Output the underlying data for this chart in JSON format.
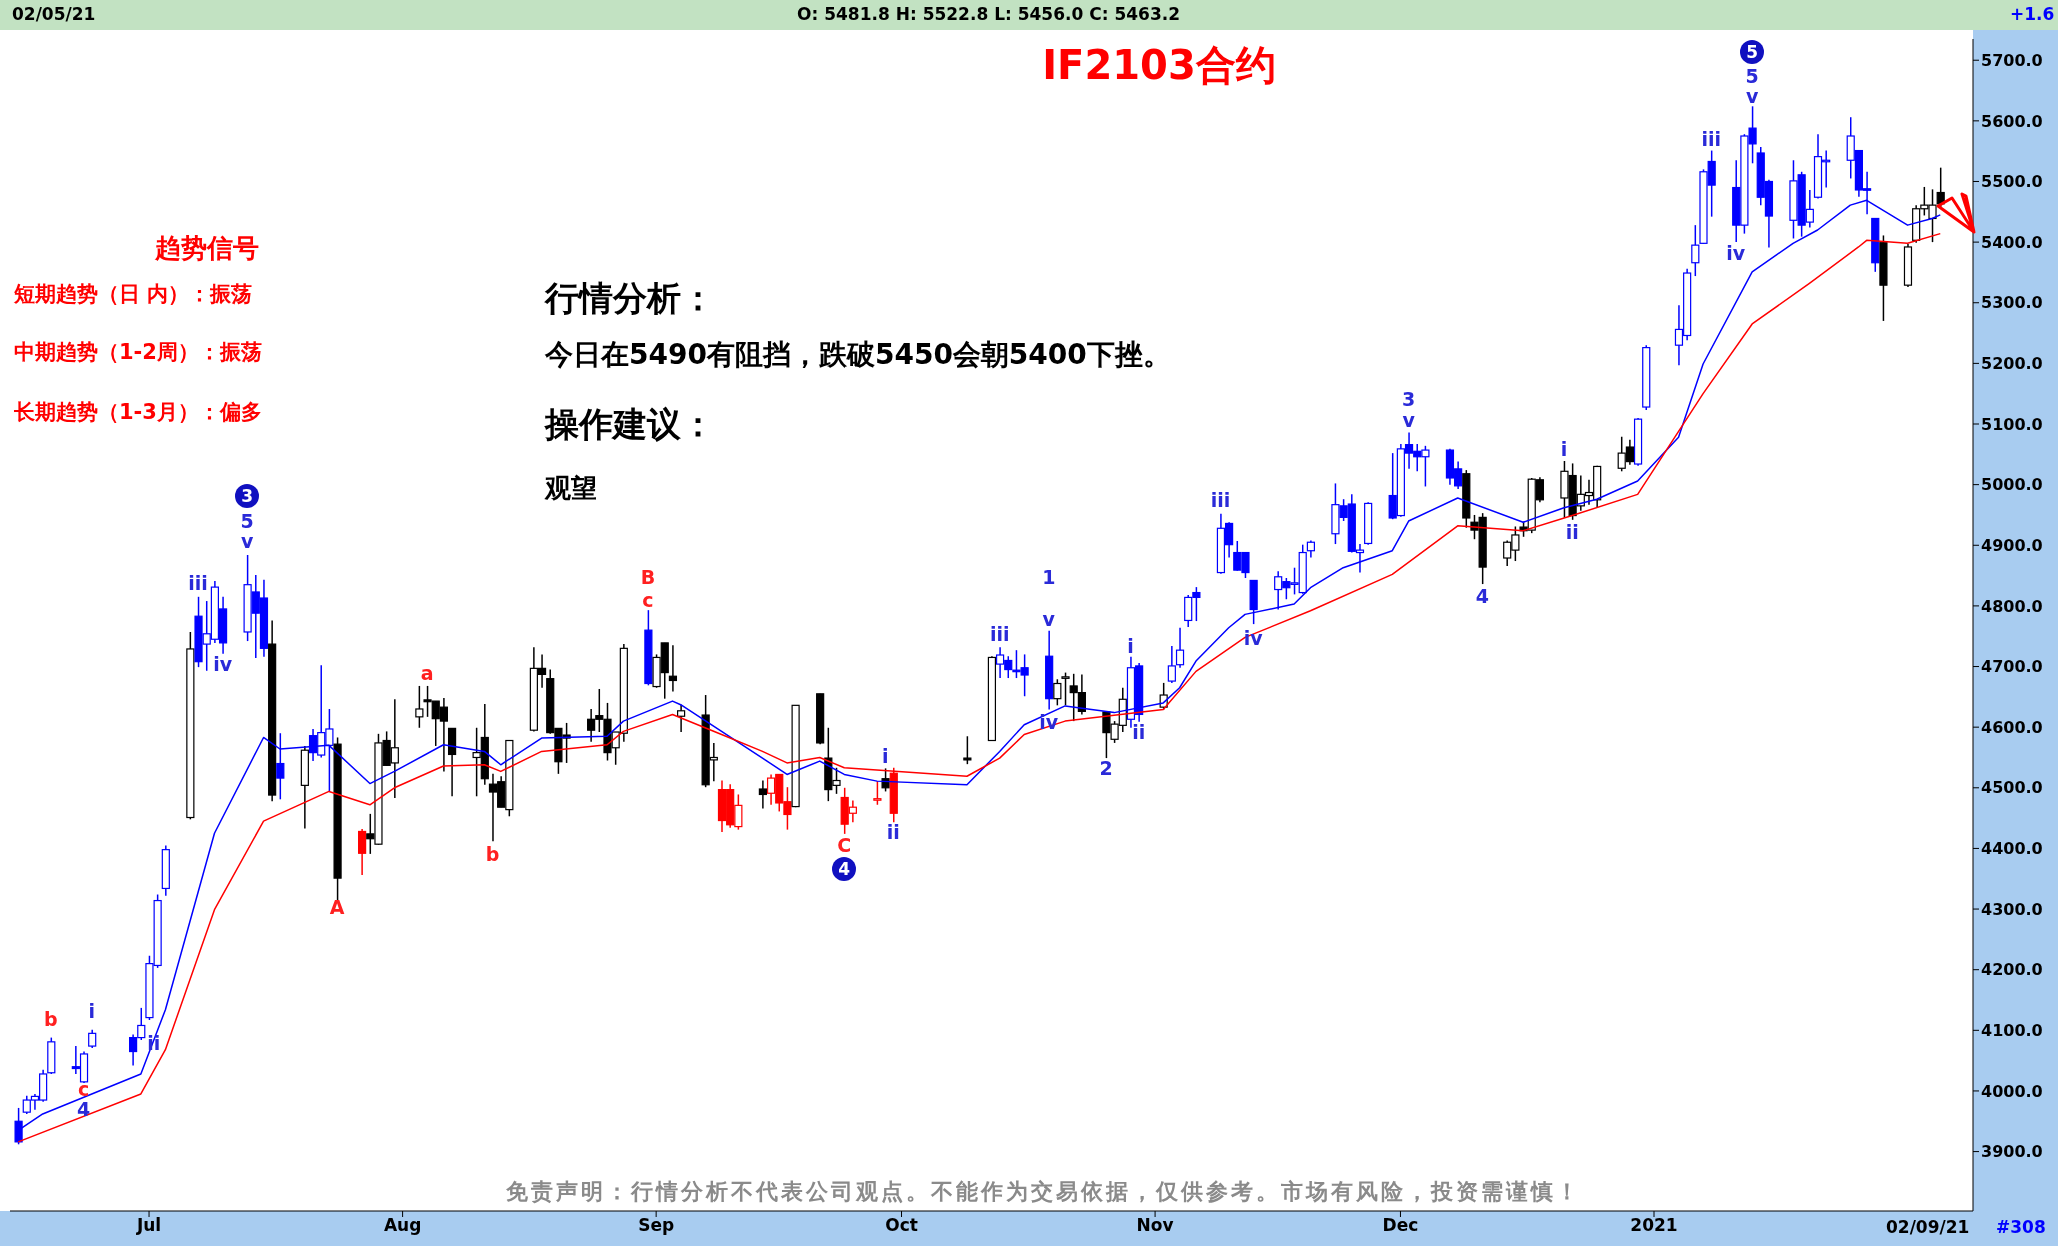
{
  "chart_data": {
    "type": "candlestick",
    "title": "IF2103合约",
    "x": [
      "2020-06-15",
      "2020-06-16",
      "2020-06-17",
      "2020-06-18",
      "2020-06-19",
      "2020-06-22",
      "2020-06-23",
      "2020-06-24",
      "2020-06-29",
      "2020-06-30",
      "2020-07-01",
      "2020-07-02",
      "2020-07-03",
      "2020-07-06",
      "2020-07-07",
      "2020-07-08",
      "2020-07-09",
      "2020-07-10",
      "2020-07-13",
      "2020-07-14",
      "2020-07-15",
      "2020-07-16",
      "2020-07-17",
      "2020-07-20",
      "2020-07-21",
      "2020-07-22",
      "2020-07-23",
      "2020-07-24",
      "2020-07-27",
      "2020-07-28",
      "2020-07-29",
      "2020-07-30",
      "2020-07-31",
      "2020-08-03",
      "2020-08-04",
      "2020-08-05",
      "2020-08-06",
      "2020-08-07",
      "2020-08-10",
      "2020-08-11",
      "2020-08-12",
      "2020-08-13",
      "2020-08-14",
      "2020-08-17",
      "2020-08-18",
      "2020-08-19",
      "2020-08-20",
      "2020-08-21",
      "2020-08-24",
      "2020-08-25",
      "2020-08-26",
      "2020-08-27",
      "2020-08-28",
      "2020-08-31",
      "2020-09-01",
      "2020-09-02",
      "2020-09-03",
      "2020-09-04",
      "2020-09-07",
      "2020-09-08",
      "2020-09-09",
      "2020-09-10",
      "2020-09-11",
      "2020-09-14",
      "2020-09-15",
      "2020-09-16",
      "2020-09-17",
      "2020-09-18",
      "2020-09-21",
      "2020-09-22",
      "2020-09-23",
      "2020-09-24",
      "2020-09-25",
      "2020-09-28",
      "2020-09-29",
      "2020-09-30",
      "2020-10-09",
      "2020-10-12",
      "2020-10-13",
      "2020-10-14",
      "2020-10-15",
      "2020-10-16",
      "2020-10-19",
      "2020-10-20",
      "2020-10-21",
      "2020-10-22",
      "2020-10-23",
      "2020-10-26",
      "2020-10-27",
      "2020-10-28",
      "2020-10-29",
      "2020-10-30",
      "2020-11-02",
      "2020-11-03",
      "2020-11-04",
      "2020-11-05",
      "2020-11-06",
      "2020-11-09",
      "2020-11-10",
      "2020-11-11",
      "2020-11-12",
      "2020-11-13",
      "2020-11-16",
      "2020-11-17",
      "2020-11-18",
      "2020-11-19",
      "2020-11-20",
      "2020-11-23",
      "2020-11-24",
      "2020-11-25",
      "2020-11-26",
      "2020-11-27",
      "2020-11-30",
      "2020-12-01",
      "2020-12-02",
      "2020-12-03",
      "2020-12-04",
      "2020-12-07",
      "2020-12-08",
      "2020-12-09",
      "2020-12-10",
      "2020-12-11",
      "2020-12-14",
      "2020-12-15",
      "2020-12-16",
      "2020-12-17",
      "2020-12-18",
      "2020-12-21",
      "2020-12-22",
      "2020-12-23",
      "2020-12-24",
      "2020-12-25",
      "2020-12-28",
      "2020-12-29",
      "2020-12-30",
      "2020-12-31",
      "2021-01-04",
      "2021-01-05",
      "2021-01-06",
      "2021-01-07",
      "2021-01-08",
      "2021-01-11",
      "2021-01-12",
      "2021-01-13",
      "2021-01-14",
      "2021-01-15",
      "2021-01-18",
      "2021-01-19",
      "2021-01-20",
      "2021-01-21",
      "2021-01-22",
      "2021-01-25",
      "2021-01-26",
      "2021-01-27",
      "2021-01-28",
      "2021-01-29",
      "2021-02-01",
      "2021-02-02",
      "2021-02-03",
      "2021-02-04",
      "2021-02-05"
    ],
    "ohlc": [
      [
        3950,
        3972,
        3912,
        3916
      ],
      [
        3965,
        3992,
        3962,
        3985
      ],
      [
        3985,
        3995,
        3969,
        3991
      ],
      [
        3985,
        4035,
        3982,
        4028
      ],
      [
        4030,
        4088,
        4028,
        4081
      ],
      [
        4040,
        4074,
        4028,
        4037
      ],
      [
        4015,
        4065,
        4013,
        4061
      ],
      [
        4074,
        4101,
        4071,
        4095
      ],
      [
        4088,
        4093,
        4042,
        4065
      ],
      [
        4088,
        4137,
        4084,
        4108
      ],
      [
        4121,
        4223,
        4117,
        4210
      ],
      [
        4207,
        4324,
        4203,
        4314
      ],
      [
        4334,
        4405,
        4322,
        4398
      ],
      [
        4451,
        4757,
        4448,
        4729
      ],
      [
        4783,
        4815,
        4699,
        4708
      ],
      [
        4737,
        4808,
        4693,
        4754
      ],
      [
        4745,
        4841,
        4739,
        4831
      ],
      [
        4795,
        4815,
        4721,
        4739
      ],
      [
        4757,
        4884,
        4742,
        4835
      ],
      [
        4823,
        4851,
        4714,
        4788
      ],
      [
        4813,
        4843,
        4716,
        4730
      ],
      [
        4737,
        4776,
        4478,
        4488
      ],
      [
        4540,
        4590,
        4481,
        4516
      ],
      [
        4504,
        4569,
        4433,
        4562
      ],
      [
        4586,
        4597,
        4544,
        4558
      ],
      [
        4554,
        4702,
        4550,
        4591
      ],
      [
        4570,
        4630,
        4494,
        4597
      ],
      [
        4572,
        4583,
        4314,
        4351
      ],
      [
        4428,
        4432,
        4356,
        4392
      ],
      [
        4424,
        4457,
        4391,
        4416
      ],
      [
        4407,
        4589,
        4406,
        4574
      ],
      [
        4578,
        4593,
        4536,
        4537
      ],
      [
        4541,
        4646,
        4483,
        4566
      ],
      [
        4617,
        4668,
        4599,
        4630
      ],
      [
        4645,
        4668,
        4617,
        4642
      ],
      [
        4643,
        4643,
        4569,
        4614
      ],
      [
        4633,
        4648,
        4527,
        4610
      ],
      [
        4598,
        4598,
        4486,
        4555
      ],
      [
        4550,
        4599,
        4486,
        4558
      ],
      [
        4583,
        4638,
        4505,
        4515
      ],
      [
        4506,
        4523,
        4412,
        4493
      ],
      [
        4510,
        4519,
        4468,
        4468
      ],
      [
        4464,
        4578,
        4453,
        4578
      ],
      [
        4595,
        4732,
        4593,
        4697
      ],
      [
        4697,
        4720,
        4665,
        4687
      ],
      [
        4680,
        4695,
        4589,
        4591
      ],
      [
        4598,
        4598,
        4523,
        4543
      ],
      [
        4587,
        4607,
        4541,
        4582
      ],
      [
        4613,
        4630,
        4576,
        4595
      ],
      [
        4619,
        4663,
        4592,
        4613
      ],
      [
        4613,
        4640,
        4545,
        4558
      ],
      [
        4566,
        4592,
        4538,
        4592
      ],
      [
        4590,
        4737,
        4576,
        4730
      ],
      [
        4760,
        4793,
        4669,
        4672
      ],
      [
        4667,
        4720,
        4665,
        4715
      ],
      [
        4739,
        4739,
        4647,
        4690
      ],
      [
        4684,
        4735,
        4659,
        4677
      ],
      [
        4618,
        4637,
        4592,
        4627
      ],
      [
        4620,
        4653,
        4501,
        4505
      ],
      [
        4546,
        4574,
        4511,
        4550
      ],
      [
        4497,
        4512,
        4427,
        4446
      ],
      [
        4497,
        4506,
        4434,
        4439
      ],
      [
        4436,
        4489,
        4431,
        4471
      ],
      [
        4498,
        4512,
        4466,
        4489
      ],
      [
        4491,
        4522,
        4472,
        4516
      ],
      [
        4522,
        4522,
        4461,
        4475
      ],
      [
        4477,
        4501,
        4431,
        4456
      ],
      [
        4469,
        4636,
        4468,
        4636
      ],
      [
        4655,
        4655,
        4572,
        4574
      ],
      [
        4549,
        4599,
        4478,
        4497
      ],
      [
        4504,
        4533,
        4490,
        4512
      ],
      [
        4484,
        4500,
        4424,
        4440
      ],
      [
        4458,
        4479,
        4443,
        4468
      ],
      [
        4482,
        4511,
        4472,
        4482
      ],
      [
        4515,
        4532,
        4494,
        4500
      ],
      [
        4524,
        4533,
        4443,
        4458
      ],
      [
        4549,
        4585,
        4539,
        4546
      ],
      [
        4578,
        4717,
        4577,
        4715
      ],
      [
        4704,
        4732,
        4681,
        4719
      ],
      [
        4710,
        4717,
        4681,
        4695
      ],
      [
        4694,
        4727,
        4681,
        4693
      ],
      [
        4698,
        4720,
        4651,
        4686
      ],
      [
        4717,
        4759,
        4629,
        4647
      ],
      [
        4647,
        4679,
        4636,
        4672
      ],
      [
        4681,
        4690,
        4636,
        4683
      ],
      [
        4668,
        4688,
        4610,
        4657
      ],
      [
        4657,
        4687,
        4621,
        4626
      ],
      [
        4625,
        4625,
        4549,
        4591
      ],
      [
        4580,
        4610,
        4574,
        4605
      ],
      [
        4603,
        4665,
        4592,
        4646
      ],
      [
        4613,
        4716,
        4599,
        4698
      ],
      [
        4701,
        4706,
        4609,
        4621
      ],
      [
        4633,
        4673,
        4629,
        4653
      ],
      [
        4676,
        4734,
        4673,
        4701
      ],
      [
        4703,
        4764,
        4698,
        4727
      ],
      [
        4776,
        4818,
        4765,
        4814
      ],
      [
        4822,
        4831,
        4775,
        4814
      ],
      [
        4855,
        4952,
        4853,
        4928
      ],
      [
        4936,
        4938,
        4880,
        4901
      ],
      [
        4888,
        4907,
        4858,
        4859
      ],
      [
        4888,
        4888,
        4846,
        4855
      ],
      [
        4842,
        4842,
        4770,
        4794
      ],
      [
        4827,
        4857,
        4794,
        4848
      ],
      [
        4840,
        4846,
        4811,
        4830
      ],
      [
        4837,
        4863,
        4819,
        4838
      ],
      [
        4822,
        4901,
        4820,
        4888
      ],
      [
        4891,
        4908,
        4880,
        4905
      ],
      [
        4919,
        5002,
        4902,
        4967
      ],
      [
        4965,
        4976,
        4940,
        4946
      ],
      [
        4968,
        4984,
        4888,
        4890
      ],
      [
        4888,
        4902,
        4855,
        4892
      ],
      [
        4903,
        4971,
        4901,
        4969
      ],
      [
        4982,
        5052,
        4943,
        4945
      ],
      [
        4949,
        5067,
        4947,
        5059
      ],
      [
        5066,
        5086,
        5026,
        5052
      ],
      [
        5055,
        5067,
        5022,
        5046
      ],
      [
        5046,
        5064,
        4997,
        5057
      ],
      [
        5057,
        5059,
        5000,
        5011
      ],
      [
        5026,
        5038,
        4993,
        4998
      ],
      [
        5018,
        5024,
        4929,
        4945
      ],
      [
        4938,
        4950,
        4910,
        4925
      ],
      [
        4946,
        4953,
        4836,
        4864
      ],
      [
        4879,
        4908,
        4866,
        4905
      ],
      [
        4892,
        4931,
        4874,
        4917
      ],
      [
        4930,
        4939,
        4914,
        4924
      ],
      [
        4925,
        5011,
        4920,
        5009
      ],
      [
        5008,
        5012,
        4971,
        4975
      ],
      [
        4978,
        5039,
        4945,
        5022
      ],
      [
        5015,
        5035,
        4942,
        4949
      ],
      [
        4965,
        5015,
        4957,
        4984
      ],
      [
        4982,
        5008,
        4967,
        4987
      ],
      [
        4975,
        5031,
        4962,
        5030
      ],
      [
        5027,
        5079,
        5022,
        5052
      ],
      [
        5062,
        5074,
        5033,
        5038
      ],
      [
        5034,
        5110,
        5031,
        5108
      ],
      [
        5128,
        5230,
        5123,
        5226
      ],
      [
        5230,
        5296,
        5197,
        5256
      ],
      [
        5246,
        5356,
        5238,
        5349
      ],
      [
        5366,
        5428,
        5344,
        5395
      ],
      [
        5398,
        5520,
        5397,
        5516
      ],
      [
        5533,
        5551,
        5442,
        5494
      ],
      [
        5490,
        5535,
        5400,
        5428
      ],
      [
        5428,
        5578,
        5414,
        5575
      ],
      [
        5588,
        5624,
        5530,
        5562
      ],
      [
        5547,
        5557,
        5461,
        5474
      ],
      [
        5500,
        5503,
        5391,
        5443
      ],
      [
        5436,
        5535,
        5406,
        5501
      ],
      [
        5511,
        5516,
        5409,
        5428
      ],
      [
        5433,
        5486,
        5424,
        5454
      ],
      [
        5474,
        5578,
        5472,
        5541
      ],
      [
        5534,
        5551,
        5490,
        5535
      ],
      [
        5535,
        5606,
        5505,
        5575
      ],
      [
        5551,
        5551,
        5475,
        5486
      ],
      [
        5488,
        5516,
        5446,
        5487
      ],
      [
        5439,
        5439,
        5351,
        5366
      ],
      [
        5399,
        5411,
        5270,
        5329
      ],
      [
        5329,
        5397,
        5326,
        5392
      ],
      [
        5403,
        5461,
        5399,
        5455
      ],
      [
        5455,
        5491,
        5444,
        5461
      ],
      [
        5439,
        5487,
        5400,
        5461
      ],
      [
        5481.8,
        5522.8,
        5456.0,
        5463.2
      ]
    ],
    "colors": [
      "#0000ff",
      "#0000ff",
      "#0000ff",
      "#0000ff",
      "#0000ff",
      "#0000ff",
      "#0000ff",
      "#0000ff",
      "#0000ff",
      "#0000ff",
      "#0000ff",
      "#0000ff",
      "#0000ff",
      "#000000",
      "#0000ff",
      "#0000ff",
      "#0000ff",
      "#0000ff",
      "#0000ff",
      "#0000ff",
      "#0000ff",
      "#000000",
      "#0000ff",
      "#000000",
      "#0000ff",
      "#0000ff",
      "#0000ff",
      "#000000",
      "#ff0000",
      "#000000",
      "#000000",
      "#000000",
      "#000000",
      "#000000",
      "#000000",
      "#000000",
      "#000000",
      "#000000",
      "#000000",
      "#000000",
      "#000000",
      "#000000",
      "#000000",
      "#000000",
      "#000000",
      "#000000",
      "#000000",
      "#000000",
      "#000000",
      "#000000",
      "#000000",
      "#000000",
      "#000000",
      "#0000ff",
      "#000000",
      "#000000",
      "#000000",
      "#000000",
      "#000000",
      "#000000",
      "#ff0000",
      "#ff0000",
      "#ff0000",
      "#000000",
      "#ff0000",
      "#ff0000",
      "#ff0000",
      "#000000",
      "#000000",
      "#000000",
      "#000000",
      "#ff0000",
      "#ff0000",
      "#ff0000",
      "#000000",
      "#ff0000",
      "#000000",
      "#000000",
      "#0000ff",
      "#0000ff",
      "#0000ff",
      "#0000ff",
      "#0000ff",
      "#000000",
      "#000000",
      "#000000",
      "#000000",
      "#000000",
      "#000000",
      "#000000",
      "#0000ff",
      "#0000ff",
      "#000000",
      "#0000ff",
      "#0000ff",
      "#0000ff",
      "#0000ff",
      "#0000ff",
      "#0000ff",
      "#0000ff",
      "#0000ff",
      "#0000ff",
      "#0000ff",
      "#0000ff",
      "#0000ff",
      "#0000ff",
      "#0000ff",
      "#0000ff",
      "#0000ff",
      "#0000ff",
      "#0000ff",
      "#0000ff",
      "#0000ff",
      "#0000ff",
      "#0000ff",
      "#0000ff",
      "#0000ff",
      "#0000ff",
      "#0000ff",
      "#000000",
      "#000000",
      "#000000",
      "#000000",
      "#000000",
      "#000000",
      "#000000",
      "#000000",
      "#000000",
      "#000000",
      "#000000",
      "#000000",
      "#000000",
      "#000000",
      "#000000",
      "#0000ff",
      "#0000ff",
      "#0000ff",
      "#0000ff",
      "#0000ff",
      "#0000ff",
      "#0000ff",
      "#0000ff",
      "#0000ff",
      "#0000ff",
      "#0000ff",
      "#0000ff",
      "#0000ff",
      "#0000ff",
      "#0000ff",
      "#0000ff",
      "#0000ff",
      "#0000ff",
      "#0000ff",
      "#0000ff",
      "#0000ff",
      "#000000",
      "#000000",
      "#000000",
      "#000000",
      "#000000",
      "#000000"
    ],
    "series": [
      {
        "type": "line",
        "color": "#0000ff",
        "x": [
          "2020-06-15",
          "2020-06-18",
          "2020-06-30",
          "2020-07-03",
          "2020-07-09",
          "2020-07-15",
          "2020-07-17",
          "2020-07-23",
          "2020-07-28",
          "2020-07-31",
          "2020-08-06",
          "2020-08-11",
          "2020-08-13",
          "2020-08-18",
          "2020-08-26",
          "2020-08-28",
          "2020-09-03",
          "2020-09-04",
          "2020-09-09",
          "2020-09-14",
          "2020-09-17",
          "2020-09-21",
          "2020-09-24",
          "2020-09-28",
          "2020-10-09",
          "2020-10-13",
          "2020-10-16",
          "2020-10-21",
          "2020-10-27",
          "2020-11-02",
          "2020-11-04",
          "2020-11-06",
          "2020-11-10",
          "2020-11-12",
          "2020-11-18",
          "2020-11-20",
          "2020-11-24",
          "2020-11-30",
          "2020-12-02",
          "2020-12-08",
          "2020-12-16",
          "2020-12-21",
          "2020-12-25",
          "2020-12-30",
          "2021-01-04",
          "2021-01-07",
          "2021-01-13",
          "2021-01-18",
          "2021-01-21",
          "2021-01-25",
          "2021-01-27",
          "2021-02-01",
          "2021-02-04",
          "2021-02-05"
        ],
        "values": [
          3935,
          3962,
          4028,
          4134,
          4425,
          4583,
          4564,
          4570,
          4507,
          4527,
          4571,
          4560,
          4538,
          4582,
          4585,
          4610,
          4643,
          4637,
          4593,
          4549,
          4522,
          4544,
          4522,
          4511,
          4505,
          4560,
          4604,
          4635,
          4624,
          4640,
          4665,
          4709,
          4764,
          4786,
          4803,
          4830,
          4863,
          4891,
          4940,
          4978,
          4938,
          4962,
          4976,
          5006,
          5078,
          5199,
          5351,
          5398,
          5420,
          5461,
          5469,
          5428,
          5439,
          5445
        ]
      },
      {
        "type": "line",
        "color": "#ff0000",
        "x": [
          "2020-06-15",
          "2020-06-30",
          "2020-07-03",
          "2020-07-09",
          "2020-07-15",
          "2020-07-23",
          "2020-07-28",
          "2020-07-31",
          "2020-08-06",
          "2020-08-11",
          "2020-08-13",
          "2020-08-18",
          "2020-08-26",
          "2020-08-28",
          "2020-09-03",
          "2020-09-09",
          "2020-09-14",
          "2020-09-17",
          "2020-09-21",
          "2020-09-24",
          "2020-10-09",
          "2020-10-13",
          "2020-10-16",
          "2020-10-21",
          "2020-11-02",
          "2020-11-06",
          "2020-11-12",
          "2020-11-20",
          "2020-11-30",
          "2020-12-08",
          "2020-12-16",
          "2020-12-22",
          "2020-12-30",
          "2021-01-07",
          "2021-01-13",
          "2021-01-20",
          "2021-01-26",
          "2021-01-27",
          "2021-02-01",
          "2021-02-05"
        ],
        "values": [
          3916,
          3995,
          4068,
          4299,
          4445,
          4494,
          4472,
          4500,
          4536,
          4538,
          4527,
          4560,
          4571,
          4593,
          4621,
          4588,
          4560,
          4541,
          4550,
          4533,
          4519,
          4549,
          4588,
          4610,
          4629,
          4692,
          4748,
          4792,
          4852,
          4932,
          4924,
          4949,
          4984,
          5150,
          5265,
          5332,
          5392,
          5403,
          5398,
          5414
        ]
      }
    ],
    "xlim": [
      "2020-06-14",
      "2021-02-09"
    ],
    "xticks": [
      {
        "value": "2020-07-01",
        "label": "Jul"
      },
      {
        "value": "2020-08-01",
        "label": "Aug"
      },
      {
        "value": "2020-09-01",
        "label": "Sep"
      },
      {
        "value": "2020-10-01",
        "label": "Oct"
      },
      {
        "value": "2020-11-01",
        "label": "Nov"
      },
      {
        "value": "2020-12-01",
        "label": "Dec"
      },
      {
        "value": "2021-01-01",
        "label": "2021"
      }
    ],
    "ylim": [
      3802,
      5735
    ],
    "yticks": [
      {
        "value": 3900,
        "label": "3900.0"
      },
      {
        "value": 4000,
        "label": "4000.0"
      },
      {
        "value": 4100,
        "label": "4100.0"
      },
      {
        "value": 4200,
        "label": "4200.0"
      },
      {
        "value": 4300,
        "label": "4300.0"
      },
      {
        "value": 4400,
        "label": "4400.0"
      },
      {
        "value": 4500,
        "label": "4500.0"
      },
      {
        "value": 4600,
        "label": "4600.0"
      },
      {
        "value": 4700,
        "label": "4700.0"
      },
      {
        "value": 4800,
        "label": "4800.0"
      },
      {
        "value": 4900,
        "label": "4900.0"
      },
      {
        "value": 5000,
        "label": "5000.0"
      },
      {
        "value": 5100,
        "label": "5100.0"
      },
      {
        "value": 5200,
        "label": "5200.0"
      },
      {
        "value": 5300,
        "label": "5300.0"
      },
      {
        "value": 5400,
        "label": "5400.0"
      },
      {
        "value": 5500,
        "label": "5500.0"
      },
      {
        "value": 5600,
        "label": "5600.0"
      },
      {
        "value": 5700,
        "label": "5700.0"
      }
    ],
    "annotations": [
      "趋势信号",
      "短期趋势（日 内）：振荡",
      "中期趋势（1-2周）：振荡",
      "长期趋势（1-3月）：偏多",
      "行情分析：",
      "今日在5490有阻挡，跌破5450会朝5400下挫。",
      "操作建议：",
      "观望",
      "免责声明：行情分析不代表公司观点。不能作为交易依据，仅供参考。市场有风险，投资需谨慎！",
      "02/05/21",
      "O: 5481.8  H: 5522.8  L: 5456.0  C: 5463.2",
      "+1.6",
      "02/09/21",
      "#308",
      "3",
      "5",
      "v",
      "iii",
      "iv",
      "A",
      "b",
      "i",
      "ii",
      "c",
      "4",
      "a",
      "b",
      "B",
      "c",
      "C",
      "4",
      "i",
      "ii",
      "iii",
      "1",
      "v",
      "iv",
      "2",
      "i",
      "ii",
      "iii",
      "iv",
      "3",
      "v",
      "4",
      "i",
      "ii",
      "iii",
      "iv",
      "5",
      "5",
      "v"
    ]
  }
}
